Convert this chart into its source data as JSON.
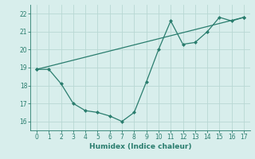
{
  "xlabel": "Humidex (Indice chaleur)",
  "line1_x": [
    0,
    1,
    2,
    3,
    4,
    5,
    6,
    7,
    8,
    9,
    10,
    11,
    12,
    13,
    14,
    15,
    16,
    17
  ],
  "line1_y": [
    18.9,
    18.9,
    18.1,
    17.0,
    16.6,
    16.5,
    16.3,
    16.0,
    16.5,
    18.2,
    20.0,
    21.6,
    20.3,
    20.4,
    21.0,
    21.8,
    21.6,
    21.8
  ],
  "line2_x": [
    0,
    17
  ],
  "line2_y": [
    18.9,
    21.8
  ],
  "line_color": "#2a7d6e",
  "bg_color": "#d8eeec",
  "grid_color": "#b8d8d4",
  "marker": "D",
  "marker_size": 2.0,
  "linewidth": 0.9,
  "xlim": [
    -0.5,
    17.5
  ],
  "ylim": [
    15.5,
    22.5
  ],
  "yticks": [
    16,
    17,
    18,
    19,
    20,
    21,
    22
  ],
  "xticks": [
    0,
    1,
    2,
    3,
    4,
    5,
    6,
    7,
    8,
    9,
    10,
    11,
    12,
    13,
    14,
    15,
    16,
    17
  ],
  "tick_fontsize": 5.5,
  "xlabel_fontsize": 6.5
}
